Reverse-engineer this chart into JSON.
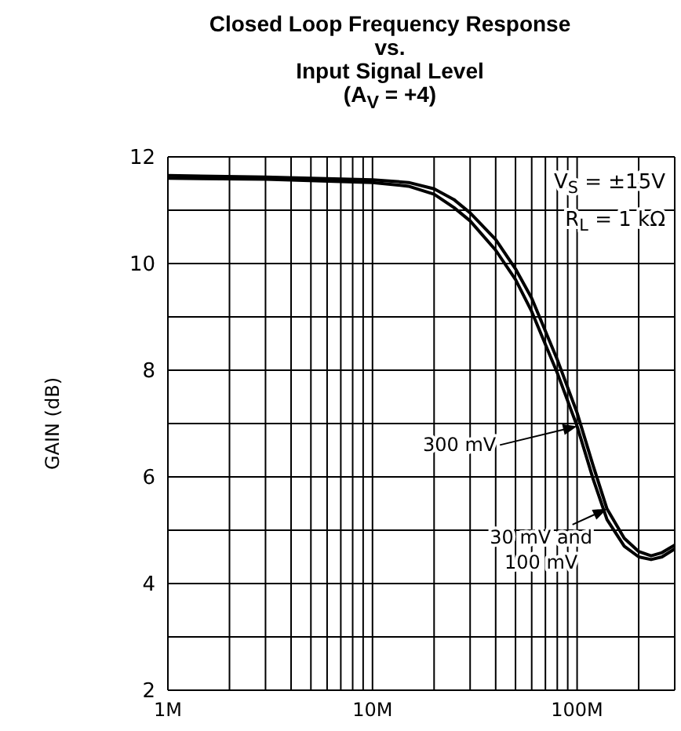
{
  "chart_data": {
    "type": "line",
    "title": "Closed Loop Frequency Response\nvs.\nInput Signal Level\n(A$_{V}$ = +4)",
    "ylabel": "GAIN (dB)",
    "annotations": [
      "V$_{S}$ = ±15V",
      "R$_{L}$ = 1 kΩ"
    ],
    "log": "x",
    "grid": true,
    "marker": "none",
    "line_style": "solid",
    "xlim": [
      1000000,
      300000000
    ],
    "xticks": [
      {
        "value": 1000000,
        "label": "1M"
      },
      {
        "value": 2000000,
        "label": null
      },
      {
        "value": 3000000,
        "label": null
      },
      {
        "value": 4000000,
        "label": null
      },
      {
        "value": 5000000,
        "label": null
      },
      {
        "value": 6000000,
        "label": null
      },
      {
        "value": 7000000,
        "label": null
      },
      {
        "value": 8000000,
        "label": null
      },
      {
        "value": 9000000,
        "label": null
      },
      {
        "value": 10000000,
        "label": "10M"
      },
      {
        "value": 20000000,
        "label": null
      },
      {
        "value": 30000000,
        "label": null
      },
      {
        "value": 40000000,
        "label": null
      },
      {
        "value": 50000000,
        "label": null
      },
      {
        "value": 60000000,
        "label": null
      },
      {
        "value": 70000000,
        "label": null
      },
      {
        "value": 80000000,
        "label": null
      },
      {
        "value": 90000000,
        "label": null
      },
      {
        "value": 100000000,
        "label": "100M"
      },
      {
        "value": 200000000,
        "label": null
      },
      {
        "value": 300000000,
        "label": null
      }
    ],
    "ylim": [
      2,
      12
    ],
    "yticks": [
      2,
      {
        "value": 3,
        "label": null
      },
      4,
      {
        "value": 5,
        "label": null
      },
      6,
      {
        "value": 7,
        "label": null
      },
      8,
      {
        "value": 9,
        "label": null
      },
      10,
      {
        "value": 11,
        "label": null
      },
      12
    ],
    "series": [
      {
        "name": "300 mV",
        "color": "#000000",
        "x": [
          1000000,
          3000000,
          10000000,
          15000000,
          20000000,
          25000000,
          30000000,
          40000000,
          50000000,
          60000000,
          80000000,
          100000000,
          120000000,
          140000000,
          170000000,
          200000000,
          230000000,
          260000000,
          300000000
        ],
        "values": [
          11.6,
          11.58,
          11.52,
          11.45,
          11.3,
          11.05,
          10.8,
          10.25,
          9.7,
          9.1,
          7.95,
          6.95,
          5.95,
          5.2,
          4.7,
          4.5,
          4.45,
          4.5,
          4.65
        ]
      },
      {
        "name": "30 mV and 100 mV",
        "color": "#000000",
        "x": [
          1000000,
          3000000,
          10000000,
          15000000,
          20000000,
          25000000,
          30000000,
          40000000,
          50000000,
          60000000,
          80000000,
          100000000,
          120000000,
          140000000,
          170000000,
          200000000,
          230000000,
          260000000,
          300000000
        ],
        "values": [
          11.65,
          11.62,
          11.57,
          11.52,
          11.4,
          11.2,
          10.95,
          10.45,
          9.9,
          9.35,
          8.2,
          7.2,
          6.2,
          5.4,
          4.85,
          4.6,
          4.52,
          4.58,
          4.72
        ]
      }
    ]
  }
}
